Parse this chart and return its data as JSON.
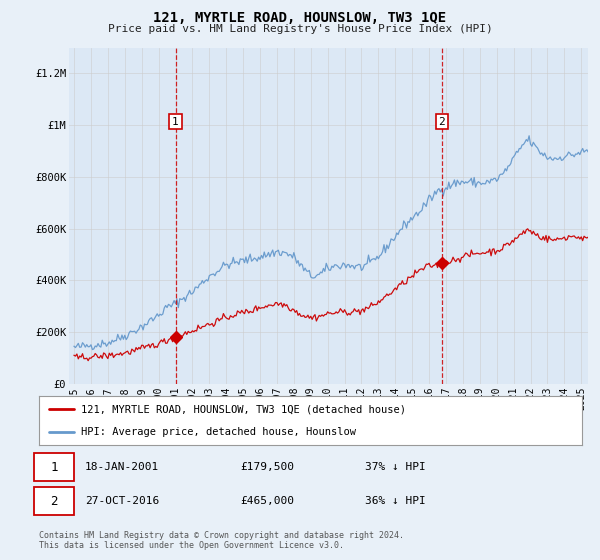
{
  "title": "121, MYRTLE ROAD, HOUNSLOW, TW3 1QE",
  "subtitle": "Price paid vs. HM Land Registry's House Price Index (HPI)",
  "legend_label_red": "121, MYRTLE ROAD, HOUNSLOW, TW3 1QE (detached house)",
  "legend_label_blue": "HPI: Average price, detached house, Hounslow",
  "sale1_date": "18-JAN-2001",
  "sale1_price": 179500,
  "sale1_month": 72,
  "sale2_date": "27-OCT-2016",
  "sale2_price": 465000,
  "sale2_month": 261,
  "sale1_pct": "37% ↓ HPI",
  "sale2_pct": "36% ↓ HPI",
  "footer": "Contains HM Land Registry data © Crown copyright and database right 2024.\nThis data is licensed under the Open Government Licence v3.0.",
  "ylim": [
    0,
    1300000
  ],
  "yticks": [
    0,
    200000,
    400000,
    600000,
    800000,
    1000000,
    1200000
  ],
  "ytick_labels": [
    "£0",
    "£200K",
    "£400K",
    "£600K",
    "£800K",
    "£1M",
    "£1.2M"
  ],
  "red_color": "#cc0000",
  "blue_color": "#6699cc",
  "background_color": "#e8f0f8",
  "plot_bg_color": "#dce8f5",
  "vline_color": "#cc0000",
  "grid_color": "#cccccc",
  "start_year": 1995,
  "end_year": 2025
}
